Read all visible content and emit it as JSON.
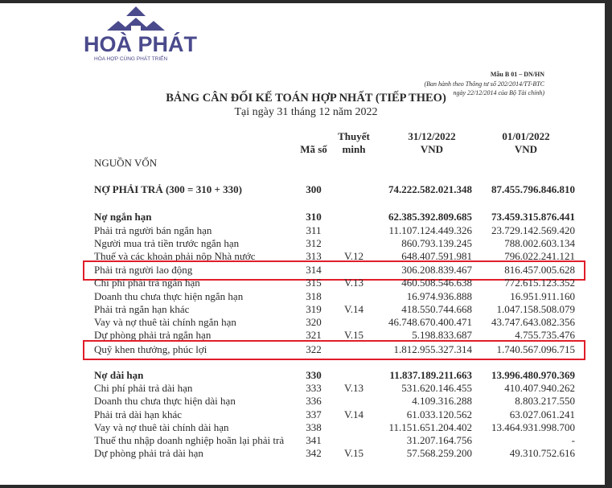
{
  "logo": {
    "name": "HOÀ PHÁT",
    "tagline": "HÒA HỢP CÙNG PHÁT TRIỂN",
    "color": "#4a4a8c"
  },
  "form": {
    "code": "Mẫu B 01 – DN/HN",
    "line1": "(Ban hành theo Thông tư số 202/2014/TT-BTC",
    "line2": "ngày 22/12/2014 của Bộ Tài chính)"
  },
  "title": "BẢNG CÂN ĐỐI KẾ TOÁN HỢP NHẤT (TIẾP THEO)",
  "subtitle": "Tại ngày 31 tháng 12 năm 2022",
  "columns": {
    "code": "Mã số",
    "note1": "Thuyết",
    "note2": "minh",
    "d1": "31/12/2022",
    "d2": "01/01/2022",
    "unit1": "VND",
    "unit2": "VND"
  },
  "section": "NGUỒN VỐN",
  "highlight_color": "#e11d2a",
  "rows": [
    {
      "label": "NỢ PHẢI TRẢ (300 = 310 + 330)",
      "code": "300",
      "note": "",
      "v1": "74.222.582.021.348",
      "v2": "87.455.796.846.810",
      "bold": true
    },
    {
      "label": "Nợ ngắn hạn",
      "code": "310",
      "note": "",
      "v1": "62.385.392.809.685",
      "v2": "73.459.315.876.441",
      "bold": true
    },
    {
      "label": "Phải trả người bán ngắn hạn",
      "code": "311",
      "note": "",
      "v1": "11.107.124.449.326",
      "v2": "23.729.142.569.420"
    },
    {
      "label": "Người mua trả tiền trước ngắn hạn",
      "code": "312",
      "note": "",
      "v1": "860.793.139.245",
      "v2": "788.002.603.134"
    },
    {
      "label": "Thuế và các khoản phải nộp Nhà nước",
      "code": "313",
      "note": "V.12",
      "v1": "648.407.591.981",
      "v2": "796.022.241.121"
    },
    {
      "label": "Phải trả người lao động",
      "code": "314",
      "note": "",
      "v1": "306.208.839.467",
      "v2": "816.457.005.628",
      "highlighted": true
    },
    {
      "label": "Chi phí phải trả ngắn hạn",
      "code": "315",
      "note": "V.13",
      "v1": "460.508.546.638",
      "v2": "772.615.123.352"
    },
    {
      "label": "Doanh thu chưa thực hiện ngắn hạn",
      "code": "318",
      "note": "",
      "v1": "16.974.936.888",
      "v2": "16.951.911.160"
    },
    {
      "label": "Phải trả ngắn hạn khác",
      "code": "319",
      "note": "V.14",
      "v1": "418.550.744.668",
      "v2": "1.047.158.508.079"
    },
    {
      "label": "Vay và nợ thuê tài chính ngắn hạn",
      "code": "320",
      "note": "",
      "v1": "46.748.670.400.471",
      "v2": "43.747.643.082.356"
    },
    {
      "label": "Dự phòng phải trả ngắn hạn",
      "code": "321",
      "note": "V.15",
      "v1": "5.198.833.687",
      "v2": "4.755.735.476"
    },
    {
      "label": "Quỹ khen thưởng, phúc lợi",
      "code": "322",
      "note": "",
      "v1": "1.812.955.327.314",
      "v2": "1.740.567.096.715",
      "highlighted": true
    },
    {
      "label": "Nợ dài hạn",
      "code": "330",
      "note": "",
      "v1": "11.837.189.211.663",
      "v2": "13.996.480.970.369",
      "bold": true
    },
    {
      "label": "Chi phí phải trả dài hạn",
      "code": "333",
      "note": "V.13",
      "v1": "531.620.146.455",
      "v2": "410.407.940.262"
    },
    {
      "label": "Doanh thu chưa thực hiện dài hạn",
      "code": "336",
      "note": "",
      "v1": "4.109.316.288",
      "v2": "8.803.217.550"
    },
    {
      "label": "Phải trả dài hạn khác",
      "code": "337",
      "note": "V.14",
      "v1": "61.033.120.562",
      "v2": "63.027.061.241"
    },
    {
      "label": "Vay và nợ thuê tài chính dài hạn",
      "code": "338",
      "note": "",
      "v1": "11.151.651.204.402",
      "v2": "13.464.931.998.700"
    },
    {
      "label": "Thuế thu nhập doanh nghiệp hoãn lại phải trả",
      "code": "341",
      "note": "",
      "v1": "31.207.164.756",
      "v2": "-"
    },
    {
      "label": "Dự phòng phải trả dài hạn",
      "code": "342",
      "note": "V.15",
      "v1": "57.568.259.200",
      "v2": "49.310.752.616"
    }
  ]
}
